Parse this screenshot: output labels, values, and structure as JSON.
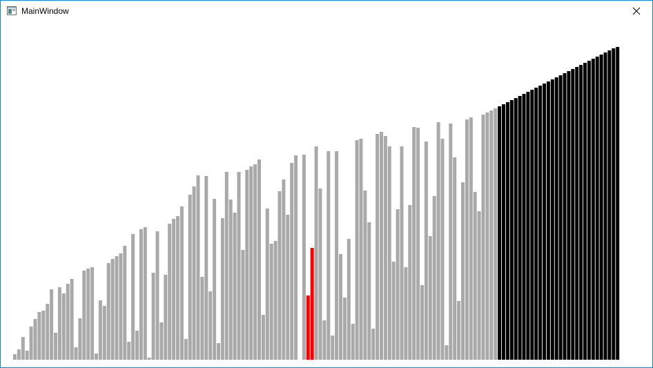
{
  "window": {
    "title": "MainWindow"
  },
  "icons": {
    "app": "window-app-icon",
    "close": "close-icon"
  },
  "colors": {
    "titlebar": "#ffffff",
    "border": "#1883d7",
    "unsorted": "#a9a9a9",
    "comparing": "#ff0000",
    "sorted": "#000000"
  },
  "chart_data": {
    "type": "bar",
    "description_free": true,
    "ylim": [
      0,
      453
    ],
    "values": [
      8,
      15,
      33,
      13,
      48,
      59,
      69,
      71,
      81,
      102,
      39,
      105,
      96,
      110,
      117,
      18,
      60,
      129,
      132,
      134,
      9,
      86,
      78,
      140,
      146,
      150,
      154,
      165,
      26,
      182,
      42,
      189,
      192,
      3,
      126,
      186,
      54,
      123,
      197,
      204,
      208,
      222,
      30,
      239,
      251,
      267,
      120,
      266,
      99,
      233,
      24,
      205,
      272,
      232,
      213,
      272,
      159,
      275,
      280,
      283,
      290,
      65,
      219,
      168,
      172,
      244,
      261,
      210,
      285,
      296,
      0,
      297,
      93,
      162,
      309,
      248,
      57,
      302,
      35,
      302,
      153,
      90,
      175,
      52,
      318,
      320,
      245,
      199,
      45,
      327,
      330,
      324,
      309,
      142,
      218,
      309,
      134,
      224,
      337,
      336,
      108,
      316,
      179,
      237,
      344,
      320,
      21,
      342,
      293,
      85,
      257,
      348,
      351,
      243,
      215,
      355,
      358,
      361,
      364,
      367,
      370,
      373,
      376,
      379,
      382,
      385,
      388,
      391,
      394,
      397,
      400,
      403,
      406,
      409,
      412,
      415,
      418,
      421,
      424,
      427,
      430,
      433,
      436,
      439,
      442,
      445,
      448,
      451,
      453
    ],
    "comparing_indices": [
      72,
      73
    ],
    "sorted_from_index": 119
  }
}
